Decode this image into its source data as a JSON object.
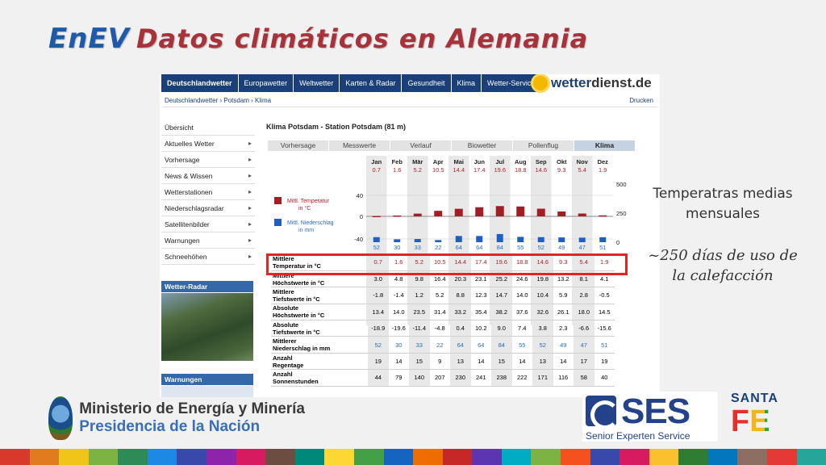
{
  "slide": {
    "title_main": "EnEV",
    "title_sub": "Datos climáticos en Alemania",
    "note_title": "Temperatras medias mensuales",
    "note_text": "~250 días de uso de la calefacción"
  },
  "site": {
    "nav": [
      "Deutschlandwetter",
      "Europawetter",
      "Weltwetter",
      "Karten & Radar",
      "Gesundheit",
      "Klima",
      "Wetter-Service"
    ],
    "logo_part1": "wetter",
    "logo_part2": "dienst.de",
    "breadcrumb": "Deutschlandwetter › Potsdam › Klima",
    "print_label": "Drucken",
    "sidebar": [
      "Übersicht",
      "Aktuelles Wetter",
      "Vorhersage",
      "News & Wissen",
      "Wetterstationen",
      "Niederschlagsradar",
      "Satellitenbilder",
      "Warnungen",
      "Schneehöhen"
    ],
    "radar_label": "Wetter-Radar",
    "warnings_label": "Warnungen",
    "content_title": "Klima Potsdam - Station Potsdam (81 m)",
    "tabs": [
      "Vorhersage",
      "Messwerte",
      "Verlauf",
      "Biowetter",
      "Pollenflug",
      "Klima"
    ]
  },
  "chart_data": {
    "type": "bar",
    "categories": [
      "Jan",
      "Feb",
      "Mär",
      "Apr",
      "Mai",
      "Jun",
      "Jul",
      "Aug",
      "Sep",
      "Okt",
      "Nov",
      "Dez"
    ],
    "series": [
      {
        "name": "Mittl. Temperatur in °C",
        "values": [
          0.7,
          1.6,
          5.2,
          10.5,
          14.4,
          17.4,
          19.6,
          18.8,
          14.6,
          9.3,
          5.4,
          1.9
        ],
        "color": "#a31d25"
      },
      {
        "name": "Mittl. Niederschlag in mm",
        "values": [
          52,
          30,
          33,
          22,
          64,
          64,
          84,
          55,
          52,
          49,
          47,
          51
        ],
        "color": "#1f5fc4"
      }
    ],
    "left_axis_ticks": [
      "40",
      "0",
      "-40"
    ],
    "right_axis_ticks": [
      "500",
      "250",
      "0"
    ],
    "temp_range": [
      -40,
      40
    ],
    "precip_range": [
      0,
      500
    ]
  },
  "table": {
    "rows": [
      {
        "label1": "Mittlere",
        "label2": "Temperatur in °C",
        "cls": "r-temp",
        "values": [
          "0.7",
          "1.6",
          "5.2",
          "10.5",
          "14.4",
          "17.4",
          "19.6",
          "18.8",
          "14.6",
          "9.3",
          "5.4",
          "1.9"
        ]
      },
      {
        "label1": "Mittlere",
        "label2": "Höchstwerte in °C",
        "cls": "",
        "values": [
          "3.0",
          "4.8",
          "9.8",
          "16.4",
          "20.3",
          "23.1",
          "25.2",
          "24.6",
          "19.8",
          "13.2",
          "8.1",
          "4.1"
        ]
      },
      {
        "label1": "Mittlere",
        "label2": "Tiefstwerte in °C",
        "cls": "",
        "values": [
          "-1.8",
          "-1.4",
          "1.2",
          "5.2",
          "8.8",
          "12.3",
          "14.7",
          "14.0",
          "10.4",
          "5.9",
          "2.8",
          "-0.5"
        ]
      },
      {
        "label1": "Absolute",
        "label2": "Höchstwerte in °C",
        "cls": "",
        "values": [
          "13.4",
          "14.0",
          "23.5",
          "31.4",
          "33.2",
          "35.4",
          "38.2",
          "37.6",
          "32.6",
          "26.1",
          "18.0",
          "14.5"
        ]
      },
      {
        "label1": "Absolute",
        "label2": "Tiefstwerte in °C",
        "cls": "",
        "values": [
          "-18.9",
          "-19.6",
          "-11.4",
          "-4.8",
          "0.4",
          "10.2",
          "9.0",
          "7.4",
          "3.8",
          "2.3",
          "-6.6",
          "-15.6"
        ]
      },
      {
        "label1": "Mittlerer",
        "label2": "Niederschlag in mm",
        "cls": "r-prec",
        "values": [
          "52",
          "30",
          "33",
          "22",
          "64",
          "64",
          "84",
          "55",
          "52",
          "49",
          "47",
          "51"
        ]
      },
      {
        "label1": "Anzahl",
        "label2": "Regentage",
        "cls": "",
        "values": [
          "19",
          "14",
          "15",
          "9",
          "13",
          "14",
          "15",
          "14",
          "13",
          "14",
          "17",
          "19"
        ]
      },
      {
        "label1": "Anzahl",
        "label2": "Sonnenstunden",
        "cls": "",
        "values": [
          "44",
          "79",
          "140",
          "207",
          "230",
          "241",
          "238",
          "222",
          "171",
          "116",
          "58",
          "40"
        ]
      }
    ]
  },
  "footer": {
    "ministry_line1": "Ministerio de Energía y Minería",
    "ministry_line2": "Presidencia de la Nación",
    "ses_name": "SES",
    "ses_sub": "Senior Experten Service",
    "santafe_1": "SANTA",
    "santafe_2": "FE"
  },
  "colors": {
    "strip": [
      "#d8392b",
      "#e07b1e",
      "#f0c419",
      "#7cb342",
      "#2e8b57",
      "#1e88e5",
      "#3949ab",
      "#8e24aa",
      "#d81b60",
      "#6d4c41",
      "#00897b",
      "#fdd835",
      "#43a047",
      "#1565c0",
      "#ef6c00",
      "#c62828",
      "#5e35b1",
      "#00acc1",
      "#7cb342",
      "#f4511e",
      "#3949ab",
      "#d81b60",
      "#fbc02d",
      "#2e7d32",
      "#0277bd",
      "#8d6e63",
      "#e53935",
      "#26a69a"
    ]
  }
}
